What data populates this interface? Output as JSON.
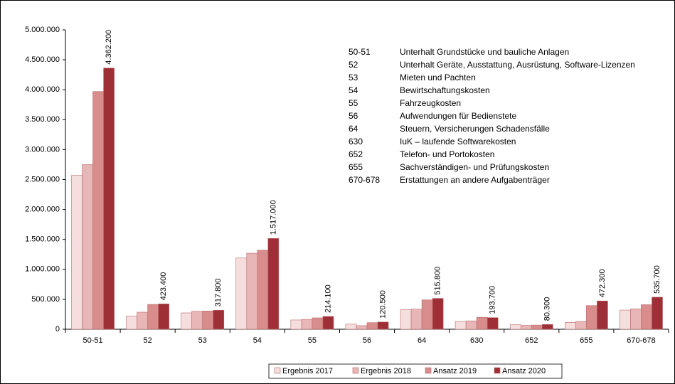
{
  "chart_data": {
    "type": "bar",
    "categories": [
      "50-51",
      "52",
      "53",
      "54",
      "55",
      "56",
      "64",
      "630",
      "652",
      "655",
      "670-678"
    ],
    "series": [
      {
        "name": "Ergebnis 2017",
        "color": "#f6dede",
        "values": [
          2570000,
          220000,
          273000,
          1190000,
          155000,
          85000,
          330000,
          130000,
          75000,
          115000,
          320000
        ]
      },
      {
        "name": "Ergebnis 2018",
        "color": "#e8b6b6",
        "values": [
          2750000,
          285000,
          300000,
          1270000,
          165000,
          60000,
          335000,
          140000,
          65000,
          130000,
          340000
        ]
      },
      {
        "name": "Ansatz 2019",
        "color": "#d88c8c",
        "values": [
          3970000,
          415000,
          305000,
          1320000,
          190000,
          110000,
          490000,
          200000,
          70000,
          395000,
          410000
        ]
      },
      {
        "name": "Ansatz 2020",
        "color": "#9e2f36",
        "values": [
          4362200,
          423400,
          317800,
          1517000,
          214100,
          120500,
          515800,
          193700,
          80300,
          472300,
          535700
        ],
        "value_labels": [
          "4.362.200",
          "423.400",
          "317.800",
          "1.517.000",
          "214.100",
          "120.500",
          "515.800",
          "193.700",
          "80.300",
          "472.300",
          "535.700"
        ]
      }
    ],
    "ylim": [
      0,
      5000000
    ],
    "yticks": [
      0,
      {
        "value": 500000,
        "label": "500.000"
      },
      {
        "value": 1000000,
        "label": "1.000.000"
      },
      {
        "value": 1500000,
        "label": "1.500.000"
      },
      {
        "value": 2000000,
        "label": "2.000.000"
      },
      {
        "value": 2500000,
        "label": "2.500.000"
      },
      {
        "value": 3000000,
        "label": "3.000.000"
      },
      {
        "value": 3500000,
        "label": "3.500.000"
      },
      {
        "value": 4000000,
        "label": "4.000.000"
      },
      {
        "value": 4500000,
        "label": "4.500.000"
      },
      {
        "value": 5000000,
        "label": "5.000.000"
      }
    ],
    "grid": false,
    "legend": "bottom",
    "annotations": [
      {
        "code": "50-51",
        "text": "Unterhalt Grundstücke und bauliche Anlagen"
      },
      {
        "code": "52",
        "text": "Unterhalt Geräte, Ausstattung, Ausrüstung, Software-Lizenzen"
      },
      {
        "code": "53",
        "text": "Mieten und Pachten"
      },
      {
        "code": "54",
        "text": "Bewirtschaftungskosten"
      },
      {
        "code": "55",
        "text": "Fahrzeugkosten"
      },
      {
        "code": "56",
        "text": "Aufwendungen für Bedienstete"
      },
      {
        "code": "64",
        "text": "Steuern, Versicherungen Schadensfälle"
      },
      {
        "code": "630",
        "text": "IuK – laufende Softwarekosten"
      },
      {
        "code": "652",
        "text": "Telefon- und Portokosten"
      },
      {
        "code": "655",
        "text": "Sachverständigen- und Prüfungskosten"
      },
      {
        "code": "670-678",
        "text": "Erstattungen an andere Aufgabenträger"
      }
    ]
  }
}
